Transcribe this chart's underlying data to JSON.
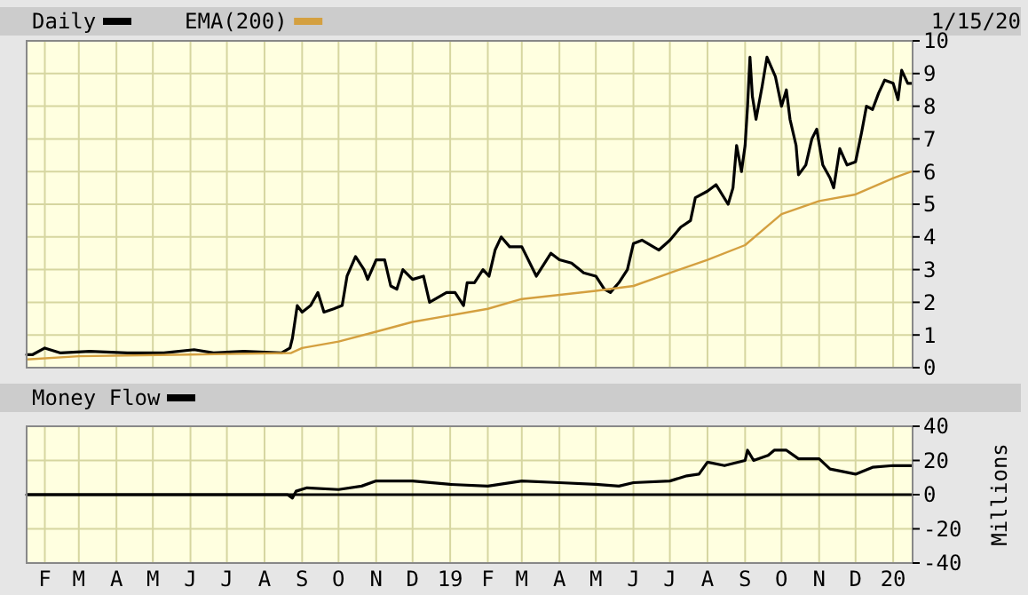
{
  "chart_data": [
    {
      "type": "line",
      "legend": "top left",
      "grid": true,
      "tick_labels": "y",
      "annotations": [
        "1/15/20"
      ],
      "xlim": [
        "2018-01-17",
        "2020-01-17"
      ],
      "xticks": [
        {
          "value": "2018-02-01",
          "label": null
        },
        {
          "value": "2018-03-01",
          "label": null
        },
        {
          "value": "2018-04-01",
          "label": null
        },
        {
          "value": "2018-05-01",
          "label": null
        },
        {
          "value": "2018-06-01",
          "label": null
        },
        {
          "value": "2018-07-01",
          "label": null
        },
        {
          "value": "2018-08-01",
          "label": null
        },
        {
          "value": "2018-09-01",
          "label": null
        },
        {
          "value": "2018-10-01",
          "label": null
        },
        {
          "value": "2018-11-01",
          "label": null
        },
        {
          "value": "2018-12-01",
          "label": null
        },
        {
          "value": "2019-01-01",
          "label": null
        },
        {
          "value": "2019-02-01",
          "label": null
        },
        {
          "value": "2019-03-01",
          "label": null
        },
        {
          "value": "2019-04-01",
          "label": null
        },
        {
          "value": "2019-05-01",
          "label": null
        },
        {
          "value": "2019-06-01",
          "label": null
        },
        {
          "value": "2019-07-01",
          "label": null
        },
        {
          "value": "2019-08-01",
          "label": null
        },
        {
          "value": "2019-09-01",
          "label": null
        },
        {
          "value": "2019-10-01",
          "label": null
        },
        {
          "value": "2019-11-01",
          "label": null
        },
        {
          "value": "2019-12-01",
          "label": null
        },
        {
          "value": "2020-01-01",
          "label": null
        }
      ],
      "ylim": [
        0,
        10
      ],
      "yticks": [
        0,
        1,
        2,
        3,
        4,
        5,
        6,
        7,
        8,
        9,
        10
      ],
      "series": [
        {
          "name": "Daily",
          "color": "#000000",
          "x": [
            "2018-01-17",
            "2018-01-22",
            "2018-02-01",
            "2018-02-14",
            "2018-03-10",
            "2018-04-10",
            "2018-05-10",
            "2018-06-04",
            "2018-06-20",
            "2018-07-15",
            "2018-08-15",
            "2018-08-22",
            "2018-08-24",
            "2018-08-28",
            "2018-09-01",
            "2018-09-08",
            "2018-09-14",
            "2018-09-19",
            "2018-09-27",
            "2018-10-04",
            "2018-10-08",
            "2018-10-15",
            "2018-10-22",
            "2018-10-25",
            "2018-11-01",
            "2018-11-08",
            "2018-11-13",
            "2018-11-18",
            "2018-11-23",
            "2018-12-01",
            "2018-12-10",
            "2018-12-15",
            "2018-12-29",
            "2019-01-05",
            "2019-01-12",
            "2019-01-15",
            "2019-01-21",
            "2019-01-28",
            "2019-02-02",
            "2019-02-07",
            "2019-02-12",
            "2019-02-19",
            "2019-03-01",
            "2019-03-13",
            "2019-03-25",
            "2019-04-01",
            "2019-04-11",
            "2019-04-21",
            "2019-05-01",
            "2019-05-08",
            "2019-05-13",
            "2019-05-20",
            "2019-05-27",
            "2019-06-01",
            "2019-06-08",
            "2019-06-22",
            "2019-07-01",
            "2019-07-10",
            "2019-07-18",
            "2019-07-22",
            "2019-08-01",
            "2019-08-08",
            "2019-08-18",
            "2019-08-22",
            "2019-08-25",
            "2019-08-29",
            "2019-09-01",
            "2019-09-03",
            "2019-09-05",
            "2019-09-07",
            "2019-09-10",
            "2019-09-15",
            "2019-09-19",
            "2019-09-26",
            "2019-10-01",
            "2019-10-05",
            "2019-10-08",
            "2019-10-13",
            "2019-10-15",
            "2019-10-21",
            "2019-10-26",
            "2019-10-30",
            "2019-11-04",
            "2019-11-10",
            "2019-11-13",
            "2019-11-18",
            "2019-11-24",
            "2019-12-01",
            "2019-12-06",
            "2019-12-10",
            "2019-12-15",
            "2019-12-20",
            "2019-12-25",
            "2020-01-01",
            "2020-01-05",
            "2020-01-08",
            "2020-01-13",
            "2020-01-16"
          ],
          "values": [
            0.4,
            0.4,
            0.6,
            0.45,
            0.5,
            0.45,
            0.45,
            0.55,
            0.45,
            0.5,
            0.45,
            0.6,
            0.9,
            1.9,
            1.7,
            1.9,
            2.3,
            1.7,
            1.8,
            1.9,
            2.8,
            3.4,
            3.0,
            2.7,
            3.3,
            3.3,
            2.5,
            2.4,
            3.0,
            2.7,
            2.8,
            2.0,
            2.3,
            2.3,
            1.9,
            2.6,
            2.6,
            3.0,
            2.8,
            3.6,
            4.0,
            3.7,
            3.7,
            2.8,
            3.5,
            3.3,
            3.2,
            2.9,
            2.8,
            2.4,
            2.3,
            2.6,
            3.0,
            3.8,
            3.9,
            3.6,
            3.9,
            4.3,
            4.5,
            5.2,
            5.4,
            5.6,
            5.0,
            5.5,
            6.8,
            6.0,
            6.8,
            8.0,
            9.5,
            8.3,
            7.6,
            8.6,
            9.5,
            8.9,
            8.0,
            8.5,
            7.6,
            6.8,
            5.9,
            6.2,
            7.0,
            7.3,
            6.2,
            5.8,
            5.5,
            6.7,
            6.2,
            6.3,
            7.2,
            8.0,
            7.9,
            8.4,
            8.8,
            8.7,
            8.2,
            9.1,
            8.7,
            8.7
          ]
        },
        {
          "name": "EMA(200)",
          "color": "#d4a040",
          "x": [
            "2018-01-17",
            "2018-03-01",
            "2018-06-01",
            "2018-08-23",
            "2018-09-01",
            "2018-10-01",
            "2018-11-01",
            "2018-12-01",
            "2019-01-01",
            "2019-02-01",
            "2019-03-01",
            "2019-05-01",
            "2019-06-01",
            "2019-07-01",
            "2019-08-01",
            "2019-09-01",
            "2019-10-01",
            "2019-11-01",
            "2019-12-01",
            "2020-01-01",
            "2020-01-16"
          ],
          "values": [
            0.25,
            0.35,
            0.4,
            0.45,
            0.6,
            0.8,
            1.1,
            1.4,
            1.6,
            1.8,
            2.1,
            2.35,
            2.5,
            2.9,
            3.3,
            3.75,
            4.7,
            5.1,
            5.3,
            5.8,
            6.0
          ]
        }
      ]
    },
    {
      "type": "line",
      "legend": "top left",
      "grid": true,
      "ylabel": "Millions",
      "xlim": [
        "2018-01-17",
        "2020-01-17"
      ],
      "xticks": [
        {
          "value": "2018-02-01",
          "label": "F"
        },
        {
          "value": "2018-03-01",
          "label": "M"
        },
        {
          "value": "2018-04-01",
          "label": "A"
        },
        {
          "value": "2018-05-01",
          "label": "M"
        },
        {
          "value": "2018-06-01",
          "label": "J"
        },
        {
          "value": "2018-07-01",
          "label": "J"
        },
        {
          "value": "2018-08-01",
          "label": "A"
        },
        {
          "value": "2018-09-01",
          "label": "S"
        },
        {
          "value": "2018-10-01",
          "label": "O"
        },
        {
          "value": "2018-11-01",
          "label": "N"
        },
        {
          "value": "2018-12-01",
          "label": "D"
        },
        {
          "value": "2019-01-01",
          "label": "19"
        },
        {
          "value": "2019-02-01",
          "label": "F"
        },
        {
          "value": "2019-03-01",
          "label": "M"
        },
        {
          "value": "2019-04-01",
          "label": "A"
        },
        {
          "value": "2019-05-01",
          "label": "M"
        },
        {
          "value": "2019-06-01",
          "label": "J"
        },
        {
          "value": "2019-07-01",
          "label": "J"
        },
        {
          "value": "2019-08-01",
          "label": "A"
        },
        {
          "value": "2019-09-01",
          "label": "S"
        },
        {
          "value": "2019-10-01",
          "label": "O"
        },
        {
          "value": "2019-11-01",
          "label": "N"
        },
        {
          "value": "2019-12-01",
          "label": "D"
        },
        {
          "value": "2020-01-01",
          "label": "20"
        }
      ],
      "ylim": [
        -40,
        40
      ],
      "yticks": [
        -40,
        -20,
        0,
        20,
        40
      ],
      "ref_lines": [
        {
          "axis": "y",
          "value": 0,
          "color": "#000000"
        }
      ],
      "series": [
        {
          "name": "Money Flow",
          "color": "#000000",
          "x": [
            "2018-01-17",
            "2018-02-20",
            "2018-03-01",
            "2018-08-20",
            "2018-08-24",
            "2018-08-27",
            "2018-09-05",
            "2018-10-01",
            "2018-10-20",
            "2018-11-01",
            "2018-12-01",
            "2019-01-01",
            "2019-02-01",
            "2019-03-01",
            "2019-04-01",
            "2019-05-01",
            "2019-05-20",
            "2019-06-01",
            "2019-07-01",
            "2019-07-15",
            "2019-07-25",
            "2019-08-01",
            "2019-08-15",
            "2019-09-01",
            "2019-09-03",
            "2019-09-08",
            "2019-09-20",
            "2019-09-25",
            "2019-10-05",
            "2019-10-15",
            "2019-11-01",
            "2019-11-10",
            "2019-12-01",
            "2019-12-15",
            "2020-01-01",
            "2020-01-16"
          ],
          "values": [
            0,
            0,
            0,
            0,
            -2,
            2,
            4,
            3,
            5,
            8,
            8,
            6,
            5,
            8,
            7,
            6,
            5,
            7,
            8,
            11,
            12,
            19,
            17,
            20,
            26,
            20,
            23,
            26,
            26,
            21,
            21,
            15,
            12,
            16,
            17,
            17
          ]
        }
      ]
    }
  ]
}
